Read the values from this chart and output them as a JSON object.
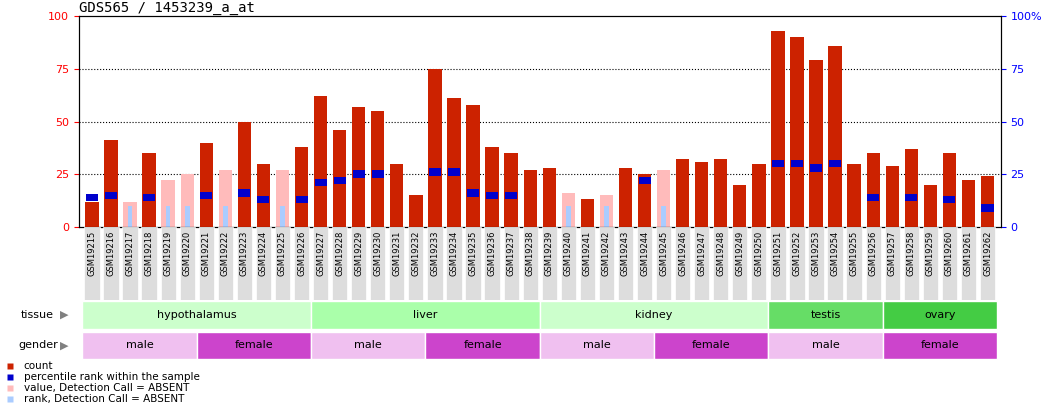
{
  "title": "GDS565 / 1453239_a_at",
  "samples": [
    "GSM19215",
    "GSM19216",
    "GSM19217",
    "GSM19218",
    "GSM19219",
    "GSM19220",
    "GSM19221",
    "GSM19222",
    "GSM19223",
    "GSM19224",
    "GSM19225",
    "GSM19226",
    "GSM19227",
    "GSM19228",
    "GSM19229",
    "GSM19230",
    "GSM19231",
    "GSM19232",
    "GSM19233",
    "GSM19234",
    "GSM19235",
    "GSM19236",
    "GSM19237",
    "GSM19238",
    "GSM19239",
    "GSM19240",
    "GSM19241",
    "GSM19242",
    "GSM19243",
    "GSM19244",
    "GSM19245",
    "GSM19246",
    "GSM19247",
    "GSM19248",
    "GSM19249",
    "GSM19250",
    "GSM19251",
    "GSM19252",
    "GSM19253",
    "GSM19254",
    "GSM19255",
    "GSM19256",
    "GSM19257",
    "GSM19258",
    "GSM19259",
    "GSM19260",
    "GSM19261",
    "GSM19262"
  ],
  "count_values": [
    12,
    41,
    0,
    35,
    0,
    0,
    40,
    0,
    50,
    30,
    0,
    38,
    62,
    46,
    57,
    55,
    30,
    15,
    75,
    61,
    58,
    38,
    35,
    27,
    28,
    0,
    13,
    0,
    28,
    25,
    0,
    32,
    31,
    32,
    20,
    30,
    93,
    90,
    79,
    86,
    30,
    35,
    29,
    37,
    20,
    35,
    22,
    24
  ],
  "rank_values": [
    14,
    15,
    0,
    14,
    0,
    0,
    15,
    0,
    16,
    13,
    0,
    13,
    21,
    22,
    25,
    25,
    0,
    0,
    26,
    26,
    16,
    15,
    15,
    0,
    0,
    0,
    0,
    0,
    0,
    22,
    0,
    0,
    0,
    0,
    0,
    0,
    30,
    30,
    28,
    30,
    0,
    14,
    0,
    14,
    0,
    13,
    0,
    9
  ],
  "absent_value": [
    0,
    0,
    12,
    0,
    22,
    25,
    0,
    27,
    0,
    0,
    27,
    0,
    0,
    0,
    0,
    0,
    0,
    0,
    0,
    0,
    0,
    0,
    0,
    0,
    0,
    16,
    0,
    15,
    0,
    0,
    27,
    0,
    0,
    0,
    0,
    0,
    0,
    0,
    0,
    0,
    0,
    0,
    0,
    0,
    0,
    0,
    0,
    0
  ],
  "absent_rank": [
    0,
    0,
    10,
    0,
    10,
    10,
    0,
    10,
    0,
    0,
    10,
    0,
    0,
    0,
    0,
    0,
    0,
    0,
    0,
    0,
    0,
    0,
    0,
    0,
    0,
    10,
    0,
    10,
    0,
    0,
    10,
    0,
    0,
    0,
    0,
    0,
    0,
    0,
    0,
    0,
    0,
    0,
    0,
    0,
    0,
    0,
    0,
    0
  ],
  "tissue_groups": [
    {
      "name": "hypothalamus",
      "start": 0,
      "end": 12,
      "color": "#CCFFCC"
    },
    {
      "name": "liver",
      "start": 12,
      "end": 24,
      "color": "#AAFFAA"
    },
    {
      "name": "kidney",
      "start": 24,
      "end": 36,
      "color": "#CCFFCC"
    },
    {
      "name": "testis",
      "start": 36,
      "end": 42,
      "color": "#66DD66"
    },
    {
      "name": "ovary",
      "start": 42,
      "end": 48,
      "color": "#44CC44"
    }
  ],
  "gender_groups": [
    {
      "name": "male",
      "start": 0,
      "end": 6,
      "color": "#F0C0F0"
    },
    {
      "name": "female",
      "start": 6,
      "end": 12,
      "color": "#CC44CC"
    },
    {
      "name": "male",
      "start": 12,
      "end": 18,
      "color": "#F0C0F0"
    },
    {
      "name": "female",
      "start": 18,
      "end": 24,
      "color": "#CC44CC"
    },
    {
      "name": "male",
      "start": 24,
      "end": 30,
      "color": "#F0C0F0"
    },
    {
      "name": "female",
      "start": 30,
      "end": 36,
      "color": "#CC44CC"
    },
    {
      "name": "male",
      "start": 36,
      "end": 42,
      "color": "#F0C0F0"
    },
    {
      "name": "female",
      "start": 42,
      "end": 48,
      "color": "#CC44CC"
    }
  ],
  "bar_color": "#CC2200",
  "rank_color": "#0000CC",
  "absent_val_color": "#FFBBBB",
  "absent_rank_color": "#AACCFF",
  "ylim": [
    0,
    100
  ],
  "yticks": [
    0,
    25,
    50,
    75,
    100
  ],
  "right_ytick_labels": [
    "0",
    "25",
    "50",
    "75",
    "100%"
  ],
  "bar_width": 0.7,
  "title_fontsize": 10,
  "legend_items": [
    {
      "label": "count",
      "color": "#CC2200"
    },
    {
      "label": "percentile rank within the sample",
      "color": "#0000CC"
    },
    {
      "label": "value, Detection Call = ABSENT",
      "color": "#FFBBBB"
    },
    {
      "label": "rank, Detection Call = ABSENT",
      "color": "#AACCFF"
    }
  ]
}
